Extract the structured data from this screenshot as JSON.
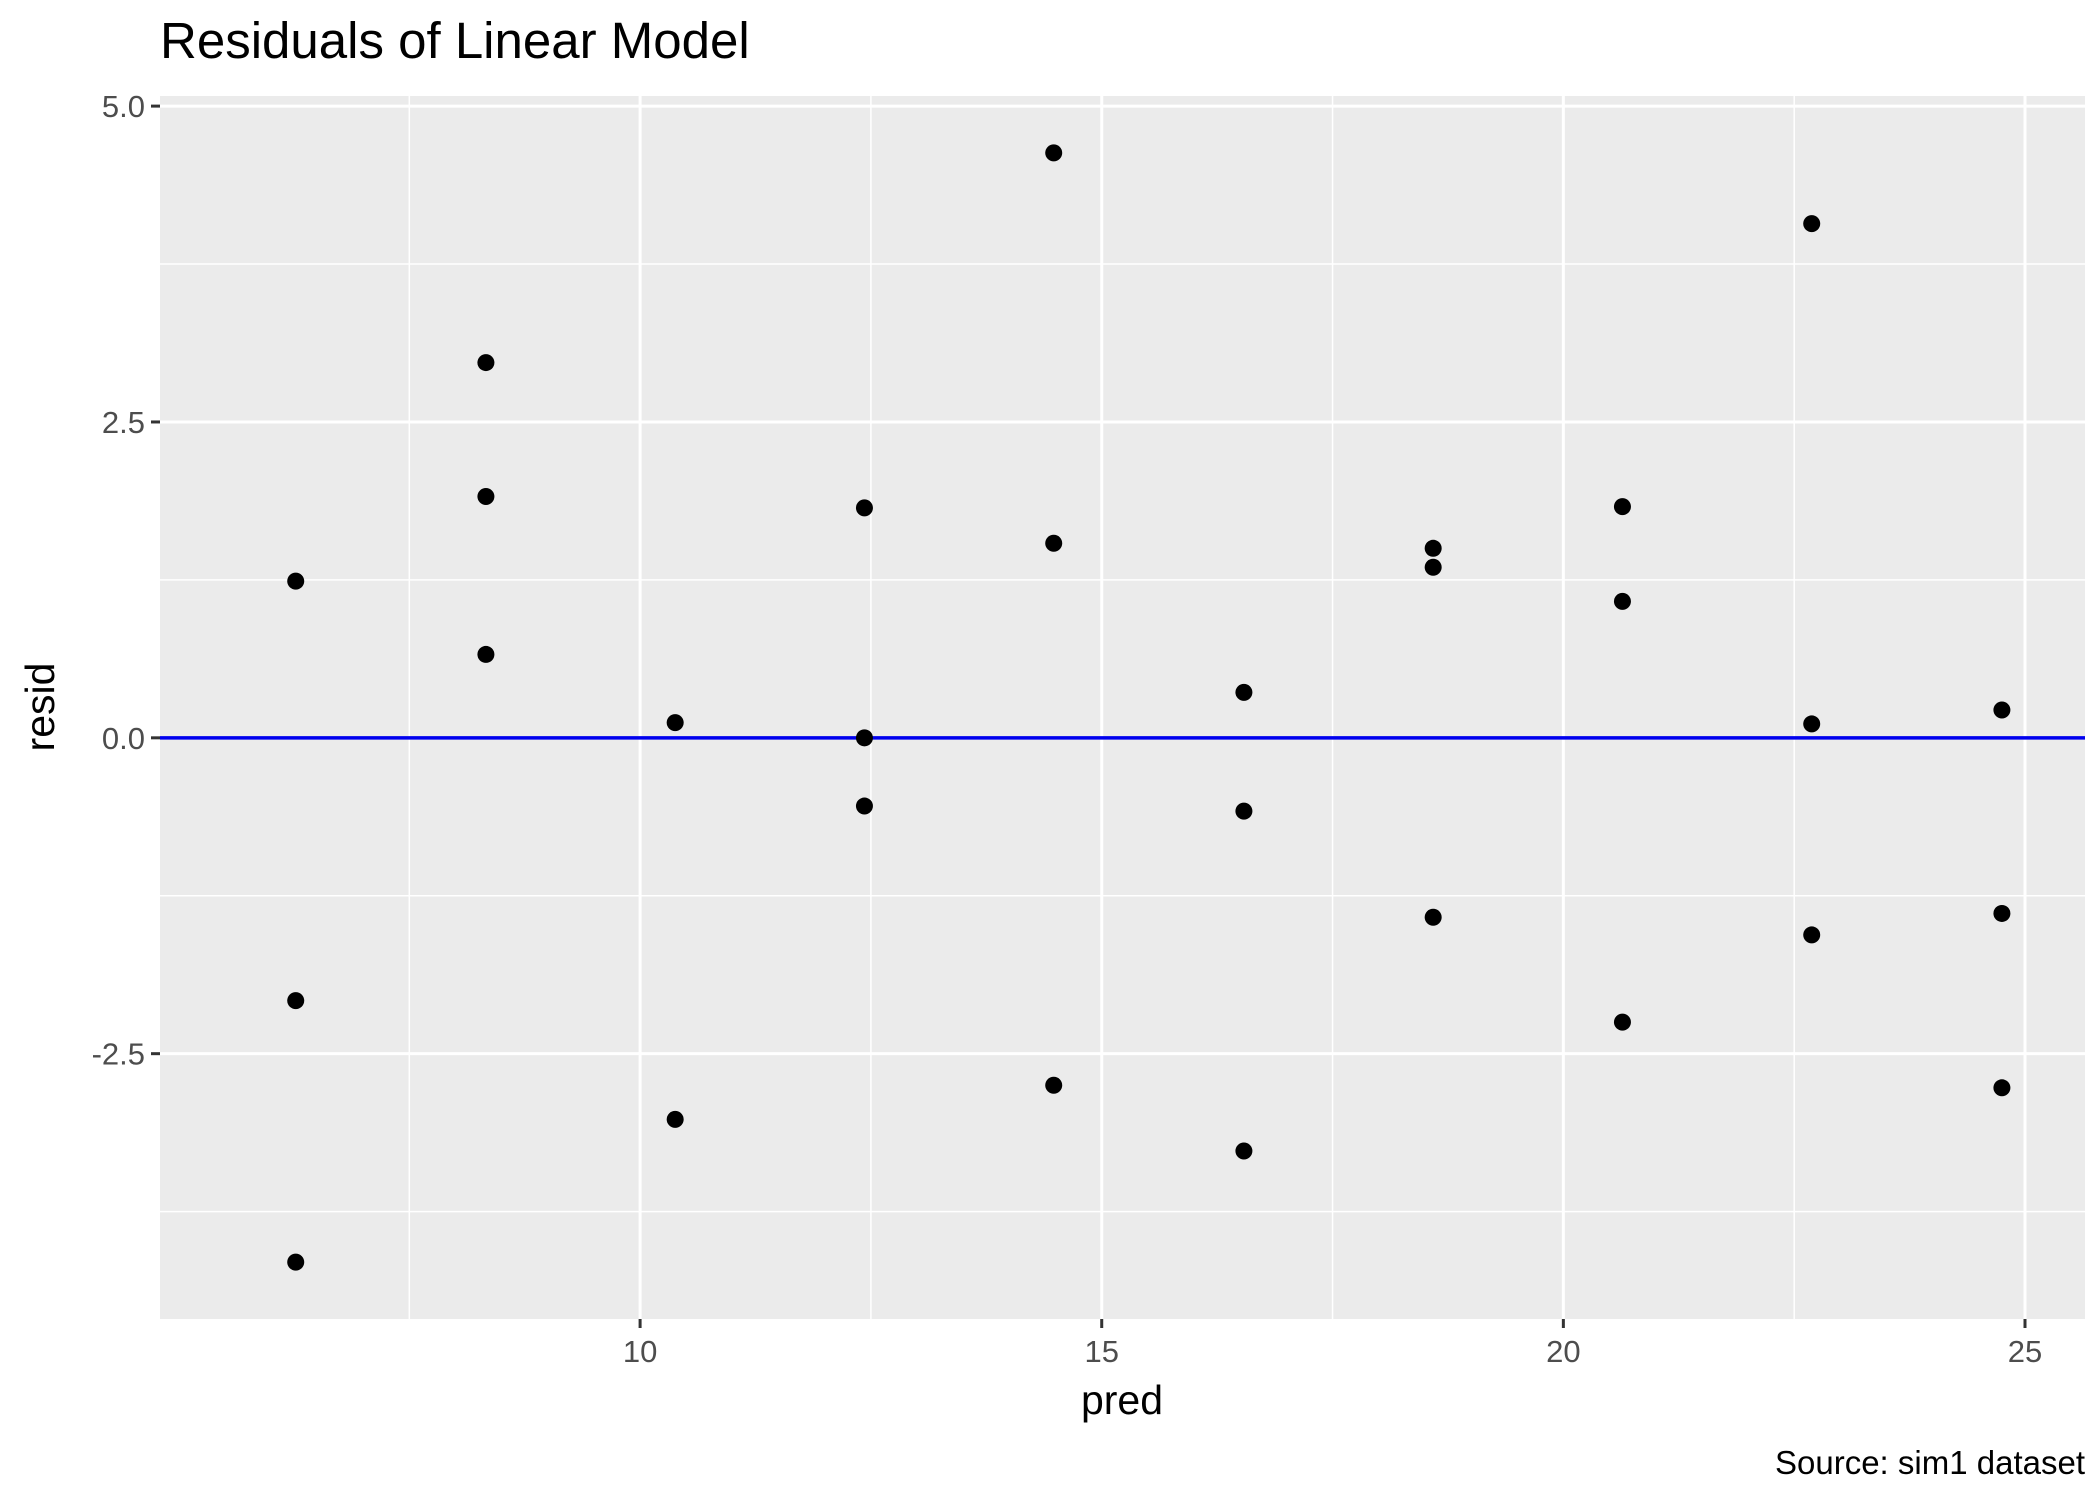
{
  "chart_data": {
    "type": "scatter",
    "title": "Residuals of Linear Model",
    "xlabel": "pred",
    "ylabel": "resid",
    "caption": "Source: sim1 dataset",
    "xlim": [
      4.8,
      25.65
    ],
    "ylim": [
      -4.6,
      5.08
    ],
    "x_ticks": [
      10,
      15,
      20,
      25
    ],
    "x_tick_labels": [
      "10",
      "15",
      "20",
      "25"
    ],
    "y_ticks": [
      -2.5,
      0,
      2.5,
      5
    ],
    "y_tick_labels": [
      "-2.5",
      "0.0",
      "2.5",
      "5.0"
    ],
    "grid": true,
    "background": "#ebebeb",
    "grid_color": "#ffffff",
    "point_color": "#000000",
    "reference_line": {
      "y": 0,
      "color": "#0000ee"
    },
    "points": [
      {
        "x": 6.27,
        "y": 1.24
      },
      {
        "x": 6.27,
        "y": -2.08
      },
      {
        "x": 6.27,
        "y": -4.15
      },
      {
        "x": 8.33,
        "y": 2.97
      },
      {
        "x": 8.33,
        "y": 1.91
      },
      {
        "x": 8.33,
        "y": 0.66
      },
      {
        "x": 10.38,
        "y": 0.12
      },
      {
        "x": 10.38,
        "y": -3.02
      },
      {
        "x": 12.43,
        "y": 1.82
      },
      {
        "x": 12.43,
        "y": 0.0
      },
      {
        "x": 12.43,
        "y": -0.54
      },
      {
        "x": 14.48,
        "y": 4.63
      },
      {
        "x": 14.48,
        "y": 1.54
      },
      {
        "x": 14.48,
        "y": -2.75
      },
      {
        "x": 16.54,
        "y": 0.36
      },
      {
        "x": 16.54,
        "y": -0.58
      },
      {
        "x": 16.54,
        "y": -3.27
      },
      {
        "x": 18.59,
        "y": 1.5
      },
      {
        "x": 18.59,
        "y": 1.35
      },
      {
        "x": 18.59,
        "y": -1.42
      },
      {
        "x": 20.64,
        "y": 1.83
      },
      {
        "x": 20.64,
        "y": 1.08
      },
      {
        "x": 20.64,
        "y": -2.25
      },
      {
        "x": 22.69,
        "y": 4.07
      },
      {
        "x": 22.69,
        "y": 0.11
      },
      {
        "x": 22.69,
        "y": -1.56
      },
      {
        "x": 24.75,
        "y": 0.22
      },
      {
        "x": 24.75,
        "y": -1.39
      },
      {
        "x": 24.75,
        "y": -2.77
      }
    ]
  }
}
